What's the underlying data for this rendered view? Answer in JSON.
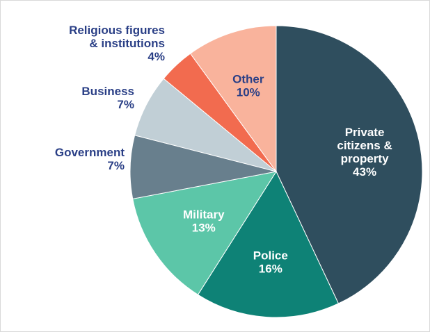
{
  "chart_data": {
    "type": "pie",
    "title": "",
    "slices": [
      {
        "name": "Private citizens & property",
        "name_lines": [
          "Private",
          "citizens &",
          "property"
        ],
        "value": 43,
        "value_label": "43%",
        "color": "#2f4e5e",
        "text_color": "#ffffff"
      },
      {
        "name": "Police",
        "name_lines": [
          "Police"
        ],
        "value": 16,
        "value_label": "16%",
        "color": "#0e8276",
        "text_color": "#ffffff"
      },
      {
        "name": "Military",
        "name_lines": [
          "Military"
        ],
        "value": 13,
        "value_label": "13%",
        "color": "#5cc6a8",
        "text_color": "#ffffff"
      },
      {
        "name": "Government",
        "name_lines": [
          "Government"
        ],
        "value": 7,
        "value_label": "7%",
        "color": "#687f8d",
        "text_color": "#2a3f86"
      },
      {
        "name": "Business",
        "name_lines": [
          "Business"
        ],
        "value": 7,
        "value_label": "7%",
        "color": "#c1cfd6",
        "text_color": "#2a3f86"
      },
      {
        "name": "Religious figures & institutions",
        "name_lines": [
          "Religious figures",
          "& institutions"
        ],
        "value": 4,
        "value_label": "4%",
        "color": "#f26b4f",
        "text_color": "#2a3f86"
      },
      {
        "name": "Other",
        "name_lines": [
          "Other"
        ],
        "value": 10,
        "value_label": "10%",
        "color": "#f9b39c",
        "text_color": "#2a3f86"
      }
    ]
  }
}
